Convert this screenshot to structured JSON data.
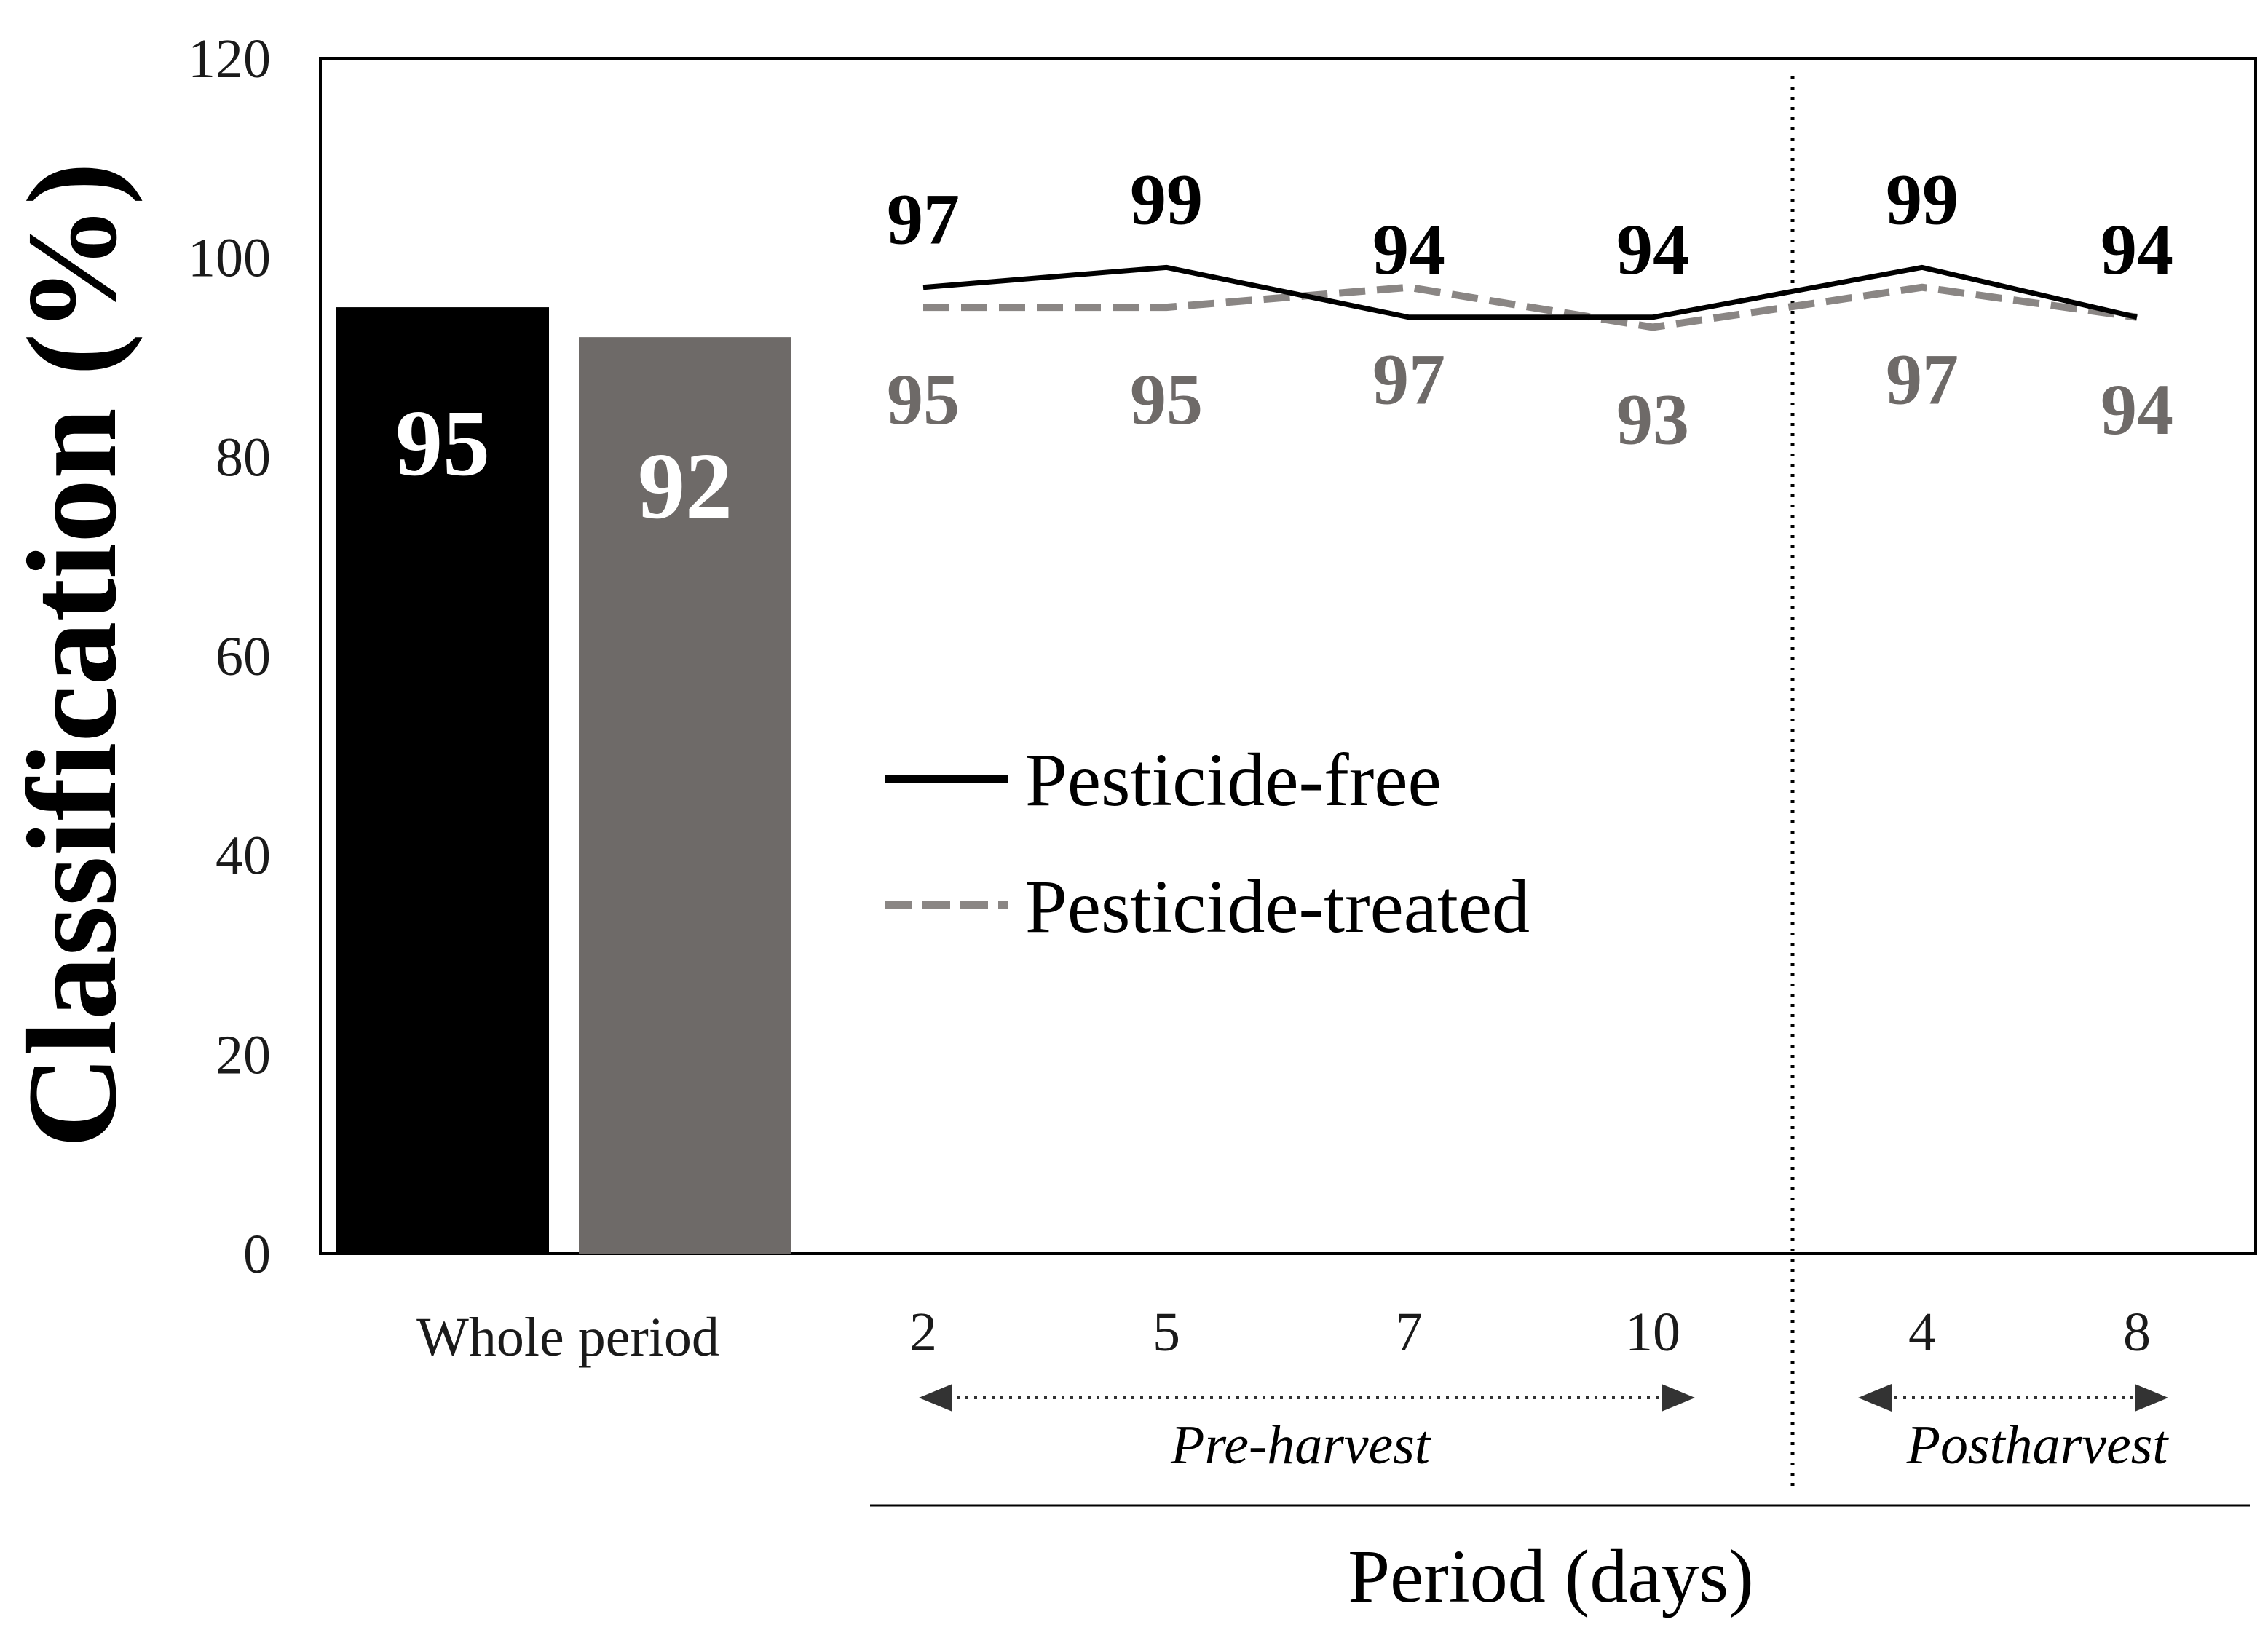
{
  "colors": {
    "pesticide_free": "#000000",
    "pesticide_treated": "#6e6a68",
    "pesticide_treated_line": "#8a8684",
    "axis": "#000000"
  },
  "chart_data": {
    "type": "bar+line",
    "ylabel": "Classification (%)",
    "xlabel": "Period (days)",
    "ylim": [
      0,
      120
    ],
    "yticks": [
      "0",
      "20",
      "40",
      "60",
      "80",
      "100",
      "120"
    ],
    "bar_group": {
      "category": "Whole period",
      "series": [
        {
          "name": "Pesticide-free",
          "value": 95,
          "label": "95"
        },
        {
          "name": "Pesticide-treated",
          "value": 92,
          "label": "92"
        }
      ]
    },
    "line_categories": [
      "2",
      "5",
      "7",
      "10",
      "4",
      "8"
    ],
    "series": [
      {
        "name": "Pesticide-free",
        "style": "solid",
        "values": [
          97,
          99,
          94,
          94,
          99,
          94
        ],
        "labels": [
          "97",
          "99",
          "94",
          "94",
          "99",
          "94"
        ]
      },
      {
        "name": "Pesticide-treated",
        "style": "dashed",
        "values": [
          95,
          95,
          97,
          93,
          97,
          94
        ],
        "labels": [
          "95",
          "95",
          "97",
          "93",
          "97",
          "94"
        ]
      }
    ],
    "legend": {
      "position": "center",
      "entries": [
        "Pesticide-free",
        "Pesticide-treated"
      ]
    },
    "period_groups": [
      {
        "label": "Pre-harvest",
        "categories": [
          "2",
          "5",
          "7",
          "10"
        ]
      },
      {
        "label": "Postharvest",
        "categories": [
          "4",
          "8"
        ]
      }
    ],
    "divider": "dotted vertical line between Pre-harvest and Postharvest"
  }
}
